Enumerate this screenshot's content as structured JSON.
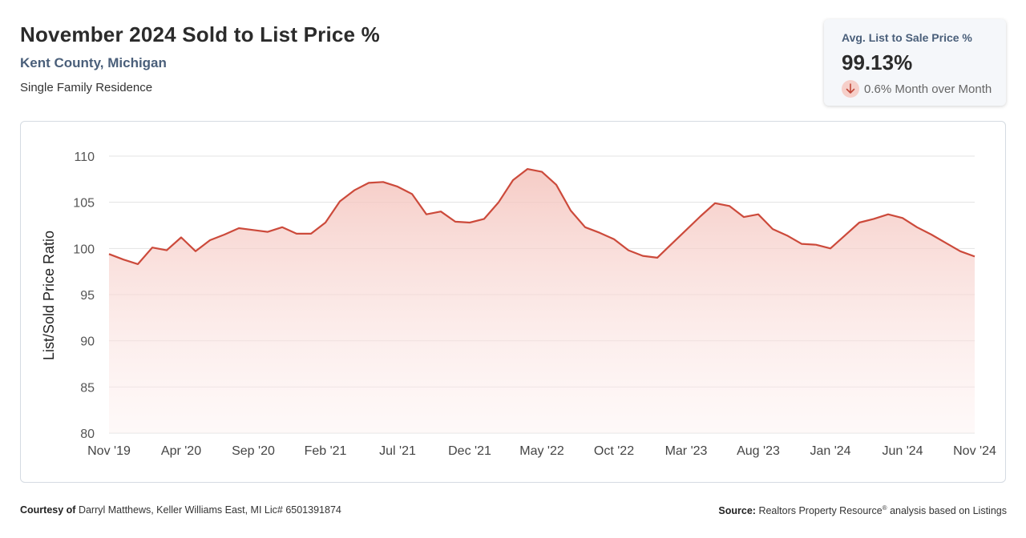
{
  "header": {
    "title": "November 2024 Sold to List Price %",
    "subtitle": "Kent County, Michigan",
    "property_type": "Single Family Residence"
  },
  "stat_card": {
    "label": "Avg. List to Sale Price %",
    "value": "99.13%",
    "change": "0.6% Month over Month",
    "change_icon": "arrow-down-icon"
  },
  "footer": {
    "courtesy_label": "Courtesy of",
    "courtesy_text": "Darryl Matthews, Keller Williams East, MI Lic# 6501391874",
    "source_label": "Source:",
    "source_text": "Realtors Property Resource",
    "source_mark": "®",
    "source_suffix": "analysis based on Listings"
  },
  "colors": {
    "line": "#cc4a3b",
    "fill": "#f7d0ca",
    "grid": "#e3e3e3",
    "title": "#2b2b2b",
    "subtitle": "#4a5f7a"
  },
  "chart_data": {
    "type": "area",
    "ylabel": "List/Sold Price Ratio",
    "xlabel": "",
    "ylim": [
      80,
      110
    ],
    "yticks": [
      80,
      85,
      90,
      95,
      100,
      105,
      110
    ],
    "grid": true,
    "x": [
      "Nov '19",
      "Dec '19",
      "Jan '20",
      "Feb '20",
      "Mar '20",
      "Apr '20",
      "May '20",
      "Jun '20",
      "Jul '20",
      "Aug '20",
      "Sep '20",
      "Oct '20",
      "Nov '20",
      "Dec '20",
      "Jan '21",
      "Feb '21",
      "Mar '21",
      "Apr '21",
      "May '21",
      "Jun '21",
      "Jul '21",
      "Aug '21",
      "Sep '21",
      "Oct '21",
      "Nov '21",
      "Dec '21",
      "Jan '22",
      "Feb '22",
      "Mar '22",
      "Apr '22",
      "May '22",
      "Jun '22",
      "Jul '22",
      "Aug '22",
      "Sep '22",
      "Oct '22",
      "Nov '22",
      "Dec '22",
      "Jan '23",
      "Feb '23",
      "Mar '23",
      "Apr '23",
      "May '23",
      "Jun '23",
      "Jul '23",
      "Aug '23",
      "Sep '23",
      "Oct '23",
      "Nov '23",
      "Dec '23",
      "Jan '24",
      "Feb '24",
      "Mar '24",
      "Apr '24",
      "May '24",
      "Jun '24",
      "Jul '24",
      "Aug '24",
      "Sep '24",
      "Oct '24",
      "Nov '24"
    ],
    "xtick_labels": [
      "Nov '19",
      "Apr '20",
      "Sep '20",
      "Feb '21",
      "Jul '21",
      "Dec '21",
      "May '22",
      "Oct '22",
      "Mar '23",
      "Aug '23",
      "Jan '24",
      "Jun '24",
      "Nov '24"
    ],
    "series": [
      {
        "values": [
          99.4,
          98.8,
          98.3,
          100.1,
          99.8,
          101.2,
          99.7,
          100.9,
          101.5,
          102.2,
          102.0,
          101.8,
          102.3,
          101.6,
          101.6,
          102.8,
          105.1,
          106.3,
          107.1,
          107.2,
          106.7,
          105.9,
          103.7,
          104.0,
          102.9,
          102.8,
          103.2,
          105.0,
          107.4,
          108.6,
          108.3,
          106.9,
          104.1,
          102.3,
          101.7,
          101.0,
          99.8,
          99.2,
          99.0,
          100.5,
          102.0,
          103.5,
          104.9,
          104.6,
          103.4,
          103.7,
          102.1,
          101.4,
          100.5,
          100.4,
          100.0,
          101.4,
          102.8,
          103.2,
          103.7,
          103.3,
          102.3,
          101.5,
          100.6,
          99.7,
          99.13
        ]
      }
    ]
  }
}
